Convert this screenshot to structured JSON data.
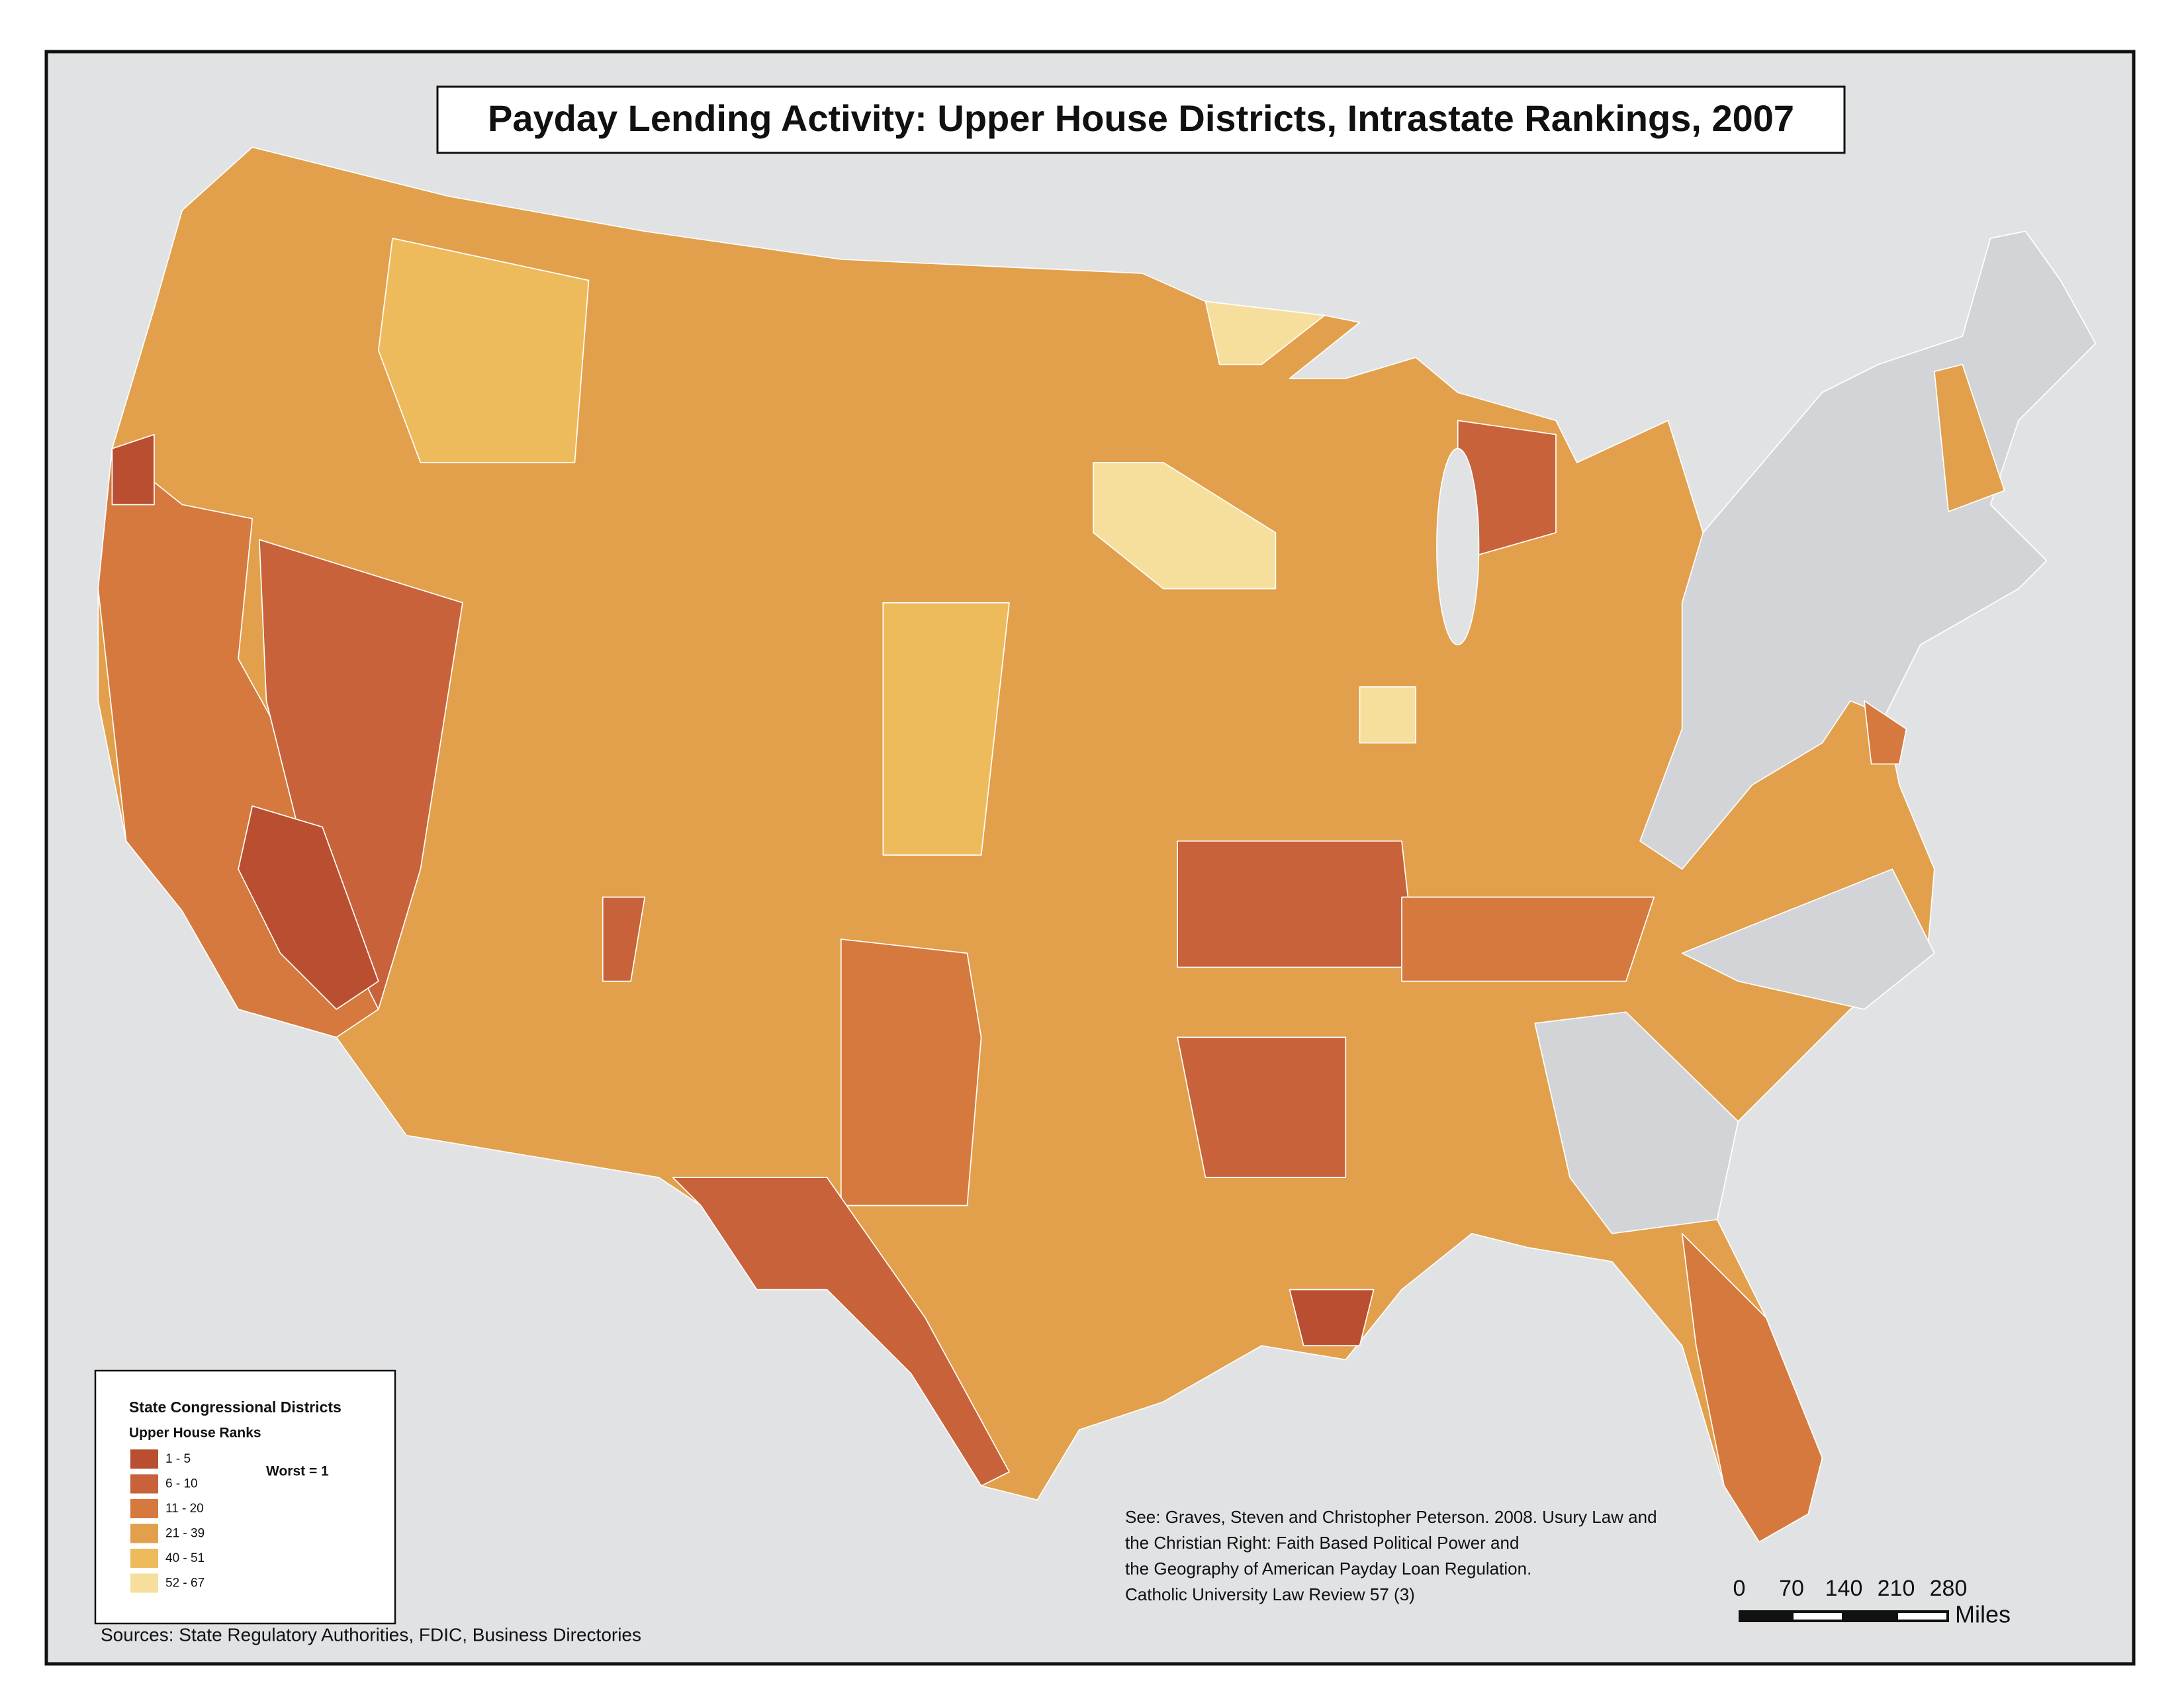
{
  "title": "Payday Lending Activity:  Upper House Districts, Intrastate Rankings, 2007",
  "legend": {
    "title": "State Congressional Districts",
    "subtitle": "Upper House Ranks",
    "note": "Worst = 1",
    "items": [
      {
        "label": "1 - 5",
        "color": "#b94f30"
      },
      {
        "label": "6 - 10",
        "color": "#c8623a"
      },
      {
        "label": "11 - 20",
        "color": "#d5793e"
      },
      {
        "label": "21 - 39",
        "color": "#e2a04c"
      },
      {
        "label": "40 - 51",
        "color": "#eebb5c"
      },
      {
        "label": "52 - 67",
        "color": "#f6df9d"
      }
    ]
  },
  "citation": [
    "See: Graves, Steven and Christopher Peterson. 2008. Usury Law and",
    "the Christian Right: Faith Based Political Power and",
    "the Geography of American Payday Loan Regulation.",
    "Catholic University Law Review 57 (3)"
  ],
  "scale_bar": {
    "ticks": [
      0,
      70,
      140,
      210,
      280
    ],
    "unit": "Miles"
  },
  "sources": "Sources: State Regulatory Authorities, FDIC, Business Directories"
}
